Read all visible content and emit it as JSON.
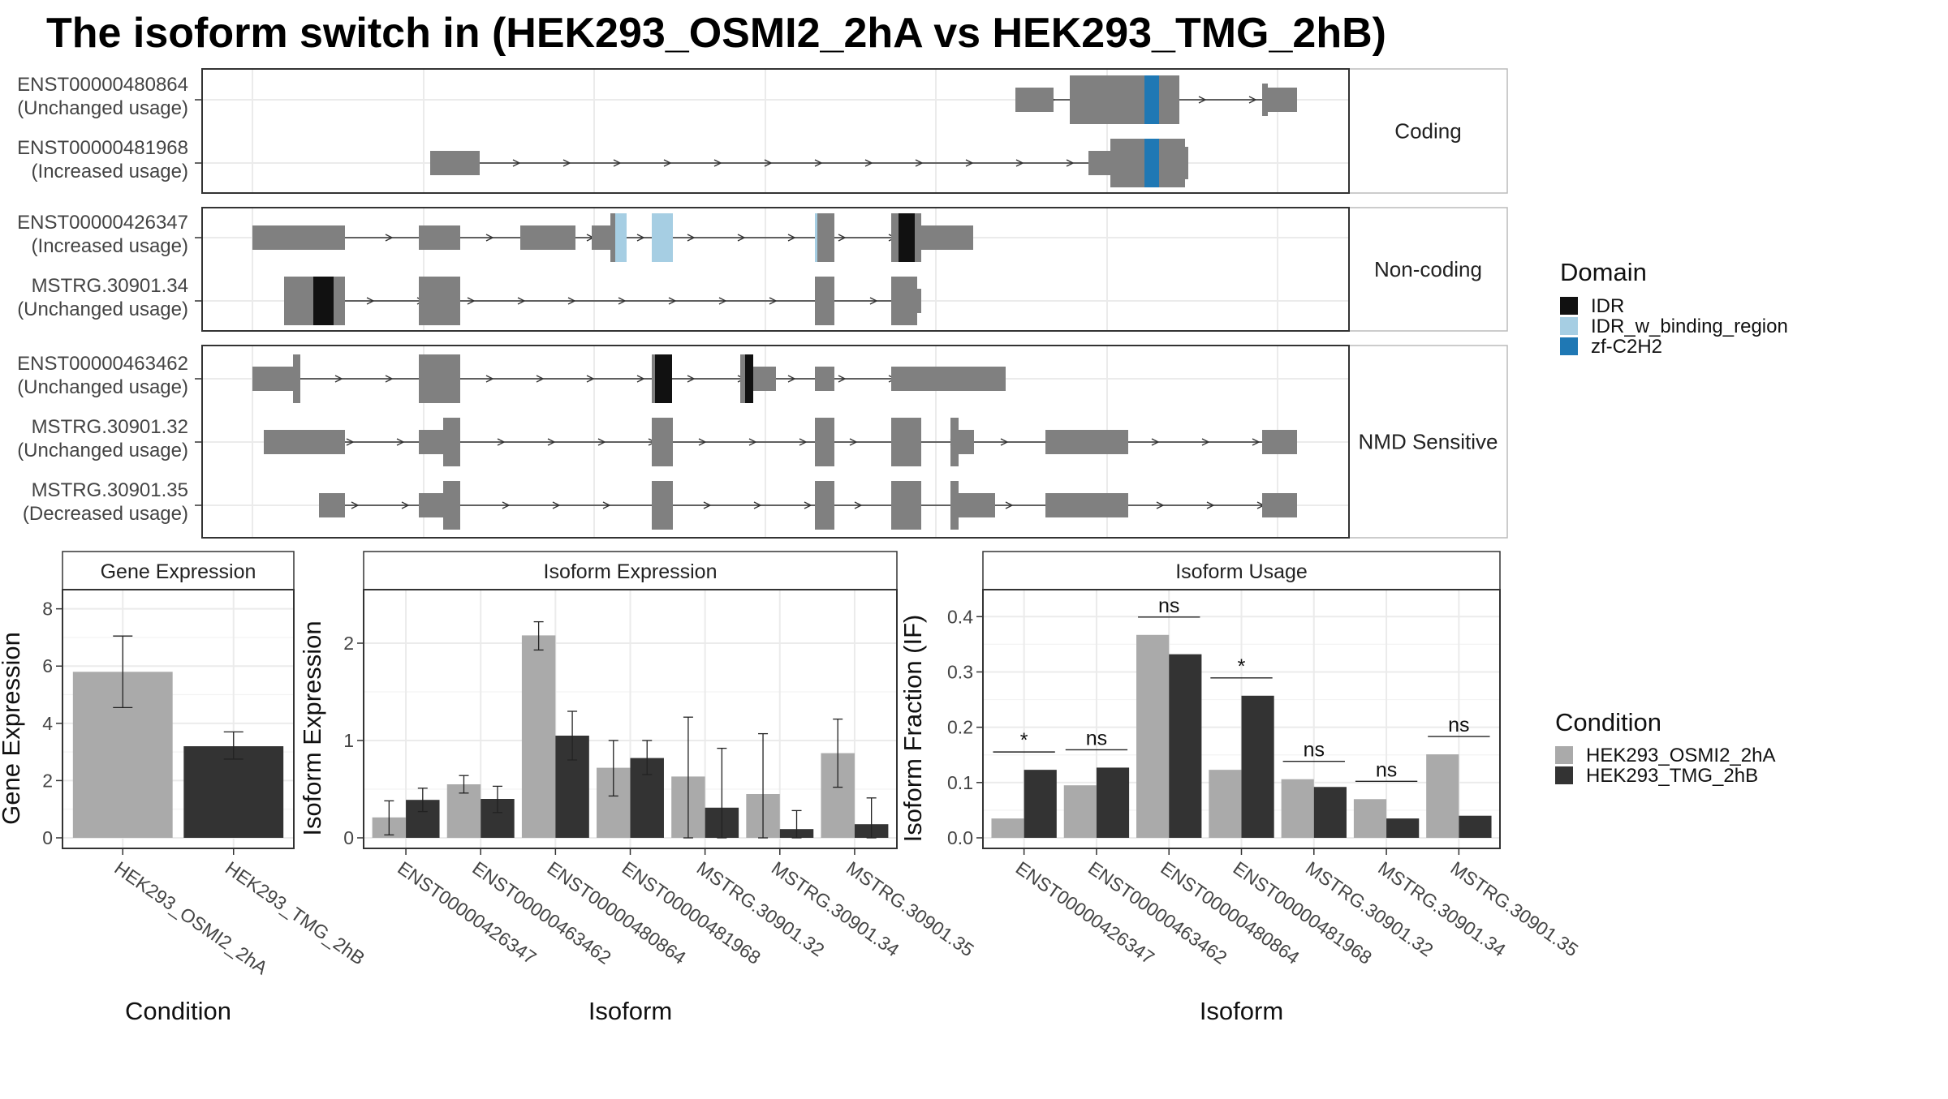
{
  "title": "The isoform switch in  (HEK293_OSMI2_2hA vs HEK293_TMG_2hB)",
  "colors": {
    "exon": "#808080",
    "IDR": "#111111",
    "IDR_w_binding_region": "#a6cee3",
    "zf-C2H2": "#1f78b4",
    "cond1": "#aaaaaa",
    "cond2": "#333333",
    "grid": "#ebebeb",
    "strip_bg": "#ffffff",
    "border": "#333333"
  },
  "structure": {
    "groups": [
      {
        "label": "Coding",
        "isoforms": [
          {
            "id": "ENST00000480864",
            "usage": "(Unchanged usage)"
          },
          {
            "id": "ENST00000481968",
            "usage": "(Increased usage)"
          }
        ]
      },
      {
        "label": "Non-coding",
        "isoforms": [
          {
            "id": "ENST00000426347",
            "usage": "(Increased usage)"
          },
          {
            "id": "MSTRG.30901.34",
            "usage": "(Unchanged usage)"
          }
        ]
      },
      {
        "label": "NMD Sensitive",
        "isoforms": [
          {
            "id": "ENST00000463462",
            "usage": "(Unchanged usage)"
          },
          {
            "id": "MSTRG.30901.32",
            "usage": "(Unchanged usage)"
          },
          {
            "id": "MSTRG.30901.35",
            "usage": "(Decreased usage)"
          }
        ]
      }
    ],
    "domain_legend": {
      "title": "Domain",
      "items": [
        {
          "name": "IDR",
          "color": "#111111"
        },
        {
          "name": "IDR_w_binding_region",
          "color": "#a6cee3"
        },
        {
          "name": "zf-C2H2",
          "color": "#1f78b4"
        }
      ]
    }
  },
  "chart_data": [
    {
      "type": "bar",
      "title": "Gene Expression",
      "xlabel": "Condition",
      "ylabel": "Gene Expression",
      "categories": [
        "HEK293_OSMI2_2hA",
        "HEK293_TMG_2hB"
      ],
      "values": [
        5.8,
        3.2
      ],
      "errors": [
        [
          4.55,
          7.05
        ],
        [
          2.75,
          3.7
        ]
      ],
      "ylim": [
        0,
        8.5
      ],
      "yticks": [
        0,
        2,
        4,
        6,
        8
      ]
    },
    {
      "type": "bar",
      "title": "Isoform Expression",
      "xlabel": "Isoform",
      "ylabel": "Isoform Expression",
      "categories": [
        "ENST00000426347",
        "ENST00000463462",
        "ENST00000480864",
        "ENST00000481968",
        "MSTRG.30901.32",
        "MSTRG.30901.34",
        "MSTRG.30901.35"
      ],
      "series": [
        {
          "name": "HEK293_OSMI2_2hA",
          "values": [
            0.21,
            0.55,
            2.08,
            0.72,
            0.63,
            0.45,
            0.87
          ],
          "errors": [
            [
              0.03,
              0.38
            ],
            [
              0.46,
              0.64
            ],
            [
              1.93,
              2.22
            ],
            [
              0.43,
              1.0
            ],
            [
              0.0,
              1.24
            ],
            [
              0.0,
              1.07
            ],
            [
              0.52,
              1.22
            ]
          ]
        },
        {
          "name": "HEK293_TMG_2hB",
          "values": [
            0.39,
            0.4,
            1.05,
            0.82,
            0.31,
            0.09,
            0.14
          ],
          "errors": [
            [
              0.27,
              0.51
            ],
            [
              0.26,
              0.53
            ],
            [
              0.8,
              1.3
            ],
            [
              0.65,
              1.0
            ],
            [
              0.0,
              0.92
            ],
            [
              0.0,
              0.28
            ],
            [
              0.0,
              0.41
            ]
          ]
        }
      ],
      "ylim": [
        0,
        2.5
      ],
      "yticks": [
        0,
        1,
        2
      ]
    },
    {
      "type": "bar",
      "title": "Isoform Usage",
      "xlabel": "Isoform",
      "ylabel": "Isoform Fraction (IF)",
      "categories": [
        "ENST00000426347",
        "ENST00000463462",
        "ENST00000480864",
        "ENST00000481968",
        "MSTRG.30901.32",
        "MSTRG.30901.34",
        "MSTRG.30901.35"
      ],
      "series": [
        {
          "name": "HEK293_OSMI2_2hA",
          "values": [
            0.035,
            0.095,
            0.367,
            0.123,
            0.106,
            0.07,
            0.151
          ]
        },
        {
          "name": "HEK293_TMG_2hB",
          "values": [
            0.123,
            0.127,
            0.332,
            0.257,
            0.092,
            0.035,
            0.04
          ]
        }
      ],
      "significance": [
        "*",
        "ns",
        "ns",
        "*",
        "ns",
        "ns",
        "ns"
      ],
      "ylim": [
        0,
        0.44
      ],
      "yticks": [
        0.0,
        0.1,
        0.2,
        0.3,
        0.4
      ],
      "ytick_labels": [
        "0.0",
        "0.1",
        "0.2",
        "0.3",
        "0.4"
      ]
    }
  ],
  "condition_legend": {
    "title": "Condition",
    "items": [
      {
        "name": "HEK293_OSMI2_2hA",
        "color": "#aaaaaa"
      },
      {
        "name": "HEK293_TMG_2hB",
        "color": "#333333"
      }
    ]
  }
}
